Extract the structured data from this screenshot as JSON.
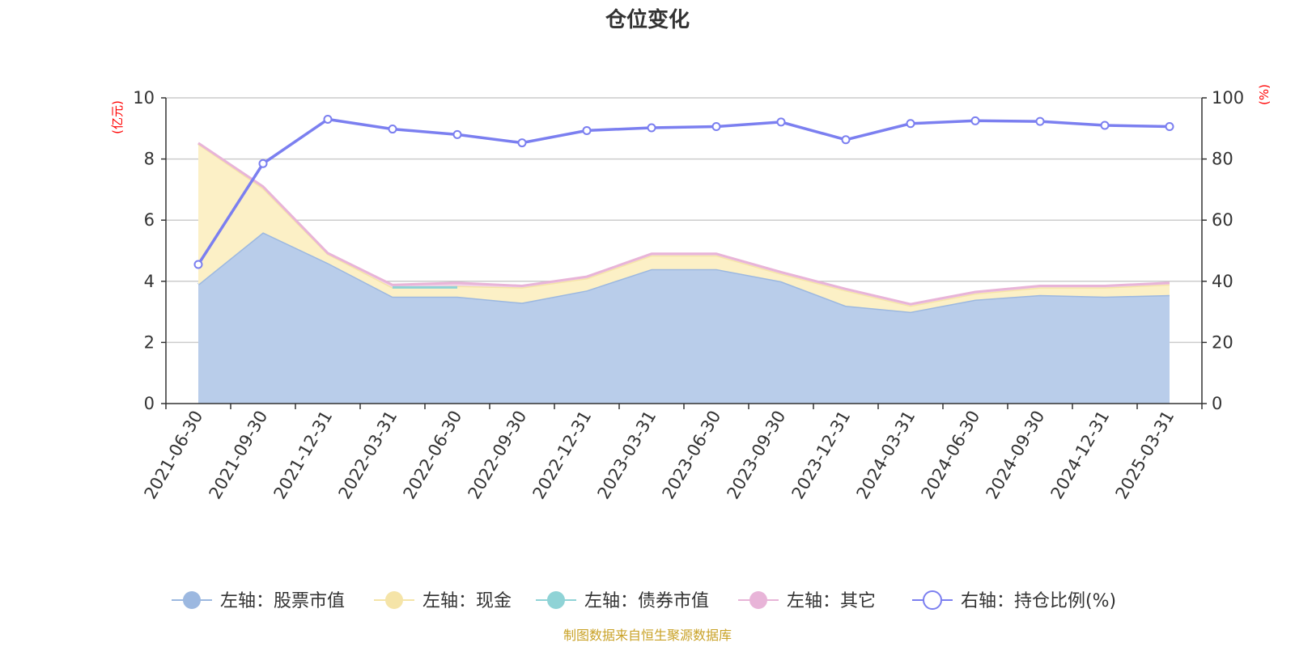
{
  "chart_data": {
    "type": "area",
    "title": "仓位变化",
    "categories": [
      "2021-06-30",
      "2021-09-30",
      "2021-12-31",
      "2022-03-31",
      "2022-06-30",
      "2022-09-30",
      "2022-12-31",
      "2023-03-31",
      "2023-06-30",
      "2023-09-30",
      "2023-12-31",
      "2024-03-31",
      "2024-06-30",
      "2024-09-30",
      "2024-12-31",
      "2025-03-31"
    ],
    "left_axis": {
      "unit": "(亿元)",
      "ylim": [
        0,
        10
      ],
      "ticks": [
        "0",
        "2",
        "4",
        "6",
        "8",
        "10"
      ]
    },
    "right_axis": {
      "unit": "(%)",
      "ylim": [
        0,
        100
      ],
      "ticks": [
        "0",
        "20",
        "40",
        "60",
        "80",
        "100"
      ]
    },
    "series": [
      {
        "name": "左轴：股票市值",
        "axis": "left",
        "kind": "stacked-area",
        "color": "#9cb8e0",
        "fill": "#b9cdea",
        "values": [
          3.9,
          5.6,
          4.6,
          3.5,
          3.5,
          3.3,
          3.7,
          4.4,
          4.4,
          4.0,
          3.2,
          3.0,
          3.4,
          3.55,
          3.5,
          3.55
        ]
      },
      {
        "name": "左轴：现金",
        "axis": "left",
        "kind": "stacked-area",
        "color": "#f5e4a8",
        "fill": "#fcf0c6",
        "values": [
          4.6,
          1.45,
          0.3,
          0.3,
          0.35,
          0.5,
          0.4,
          0.45,
          0.45,
          0.25,
          0.5,
          0.2,
          0.2,
          0.25,
          0.3,
          0.35
        ]
      },
      {
        "name": "左轴：债券市值",
        "axis": "left",
        "kind": "stacked-area",
        "color": "#8fd3d6",
        "fill": "#bfe6e8",
        "values": [
          0,
          0,
          0,
          0.0,
          0.0,
          0,
          0,
          0,
          0,
          0,
          0,
          0,
          0,
          0,
          0,
          0
        ]
      },
      {
        "name": "左轴：其它",
        "axis": "left",
        "kind": "stacked-area",
        "color": "#e8b4d8",
        "fill": "#f2d3e8",
        "values": [
          0.02,
          0.05,
          0.02,
          0.08,
          0.1,
          0.05,
          0.05,
          0.05,
          0.05,
          0.05,
          0.05,
          0.05,
          0.05,
          0.05,
          0.05,
          0.05
        ]
      },
      {
        "name": "右轴：持仓比例(%)",
        "axis": "right",
        "kind": "line",
        "color": "#7b7ff0",
        "values": [
          45.5,
          78.5,
          93,
          89.8,
          88,
          85.3,
          89.3,
          90.2,
          90.6,
          92.1,
          86.3,
          91.6,
          92.5,
          92.3,
          91,
          90.6
        ]
      }
    ],
    "bond_segment": {
      "from": 3,
      "to": 4,
      "value": 3.8
    },
    "grid": true,
    "legend_position": "bottom-center"
  },
  "footer": {
    "source_text": "制图数据来自恒生聚源数据库"
  }
}
